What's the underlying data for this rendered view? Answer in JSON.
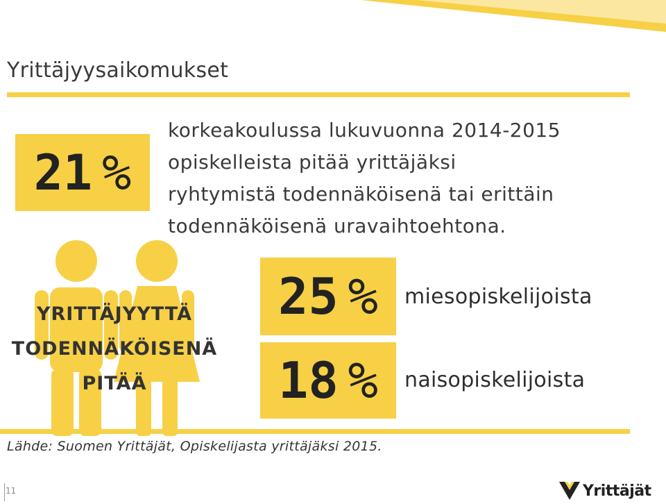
{
  "page": {
    "title": "Yrittäjyysaikomukset",
    "page_number": "11",
    "source": "Lähde: Suomen Yrittäjät, Opiskelijasta yrittäjäksi 2015."
  },
  "main_stat": {
    "number": "21",
    "sign": "%",
    "text_lines": [
      "korkeakoulussa lukuvuonna 2014-2015",
      "opiskelleista pitää yrittäjäksi",
      "ryhtymistä todennäköisenä tai erittäin",
      "todennäköisenä uravaihtoehtona."
    ]
  },
  "figure_caption": [
    "YRITTÄJYYTTÄ",
    "TODENNÄKÖISENÄ",
    "PITÄÄ"
  ],
  "breakdown": [
    {
      "number": "25",
      "sign": "%",
      "label": "miesopiskelijoista"
    },
    {
      "number": "18",
      "sign": "%",
      "label": "naisopiskelijoista"
    }
  ],
  "logo": {
    "text": "Yrittäjät"
  },
  "colors": {
    "accent": "#f7d046",
    "figure": "#f7d046",
    "text": "#3a3a3a"
  },
  "icons": [
    "male-figure-icon",
    "female-figure-icon",
    "yrittajat-logo-icon"
  ]
}
